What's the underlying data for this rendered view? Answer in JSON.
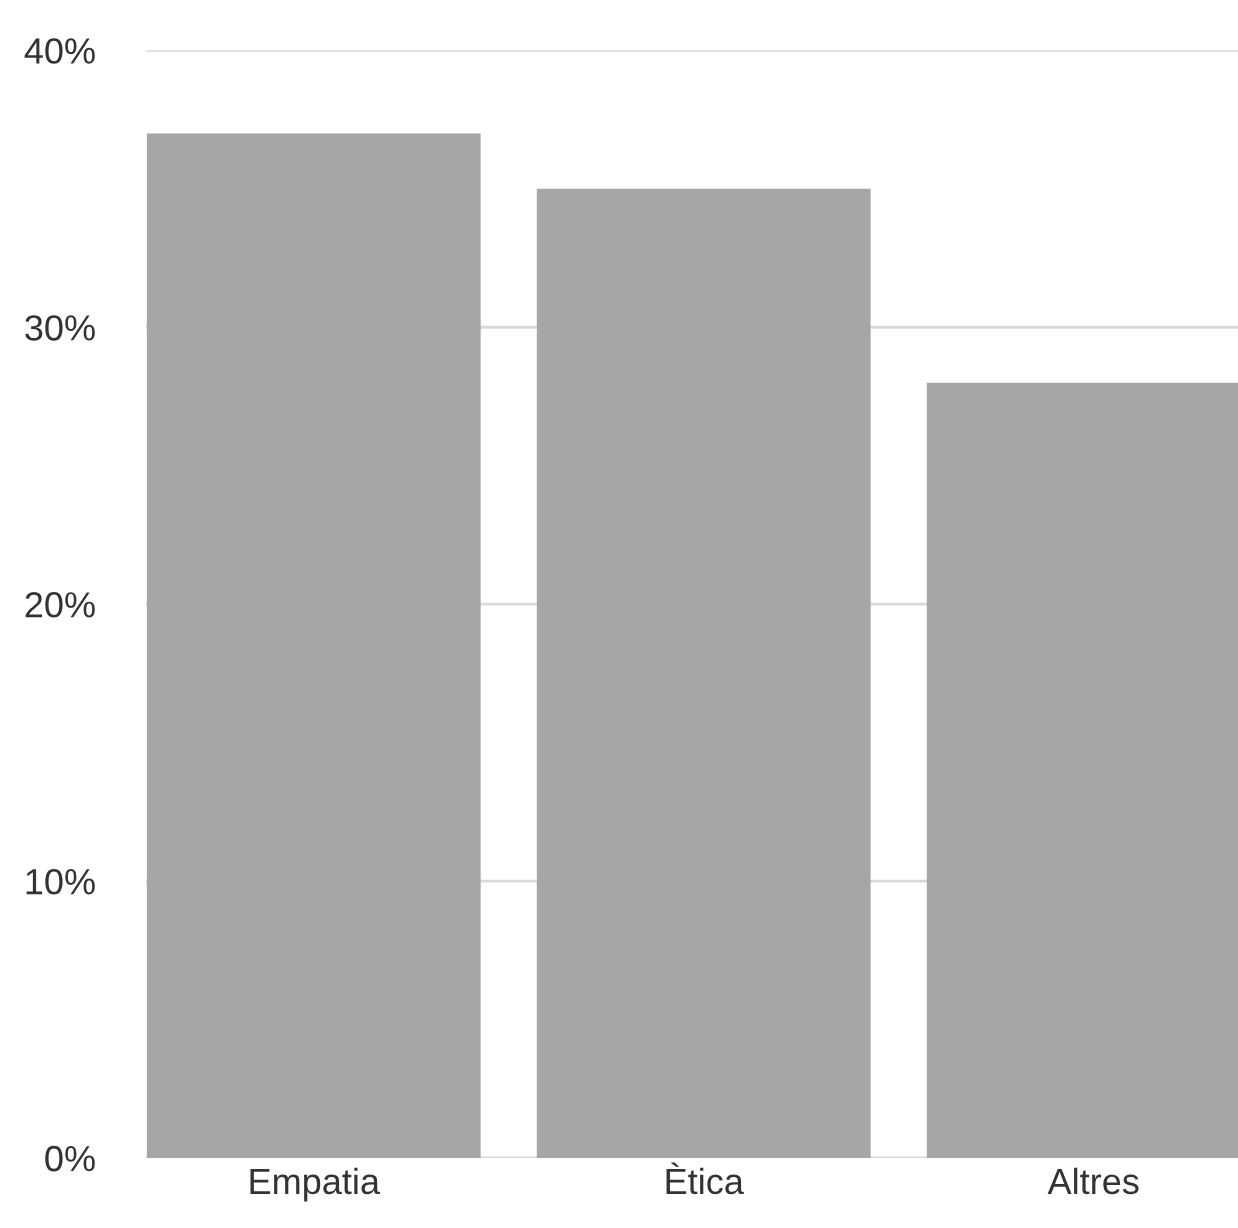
{
  "chart_data": {
    "type": "bar",
    "categories": [
      "Empatia",
      "Ètica",
      "Altres"
    ],
    "values": [
      37,
      35,
      28
    ],
    "color": "#a6a6a6",
    "ylim": [
      0,
      40
    ],
    "yticks": [
      {
        "value": 0,
        "label": "0%"
      },
      {
        "value": 10,
        "label": "10%"
      },
      {
        "value": 20,
        "label": "20%"
      },
      {
        "value": 30,
        "label": "30%"
      },
      {
        "value": 40,
        "label": "40%"
      }
    ],
    "grid": "y",
    "legend": false
  }
}
